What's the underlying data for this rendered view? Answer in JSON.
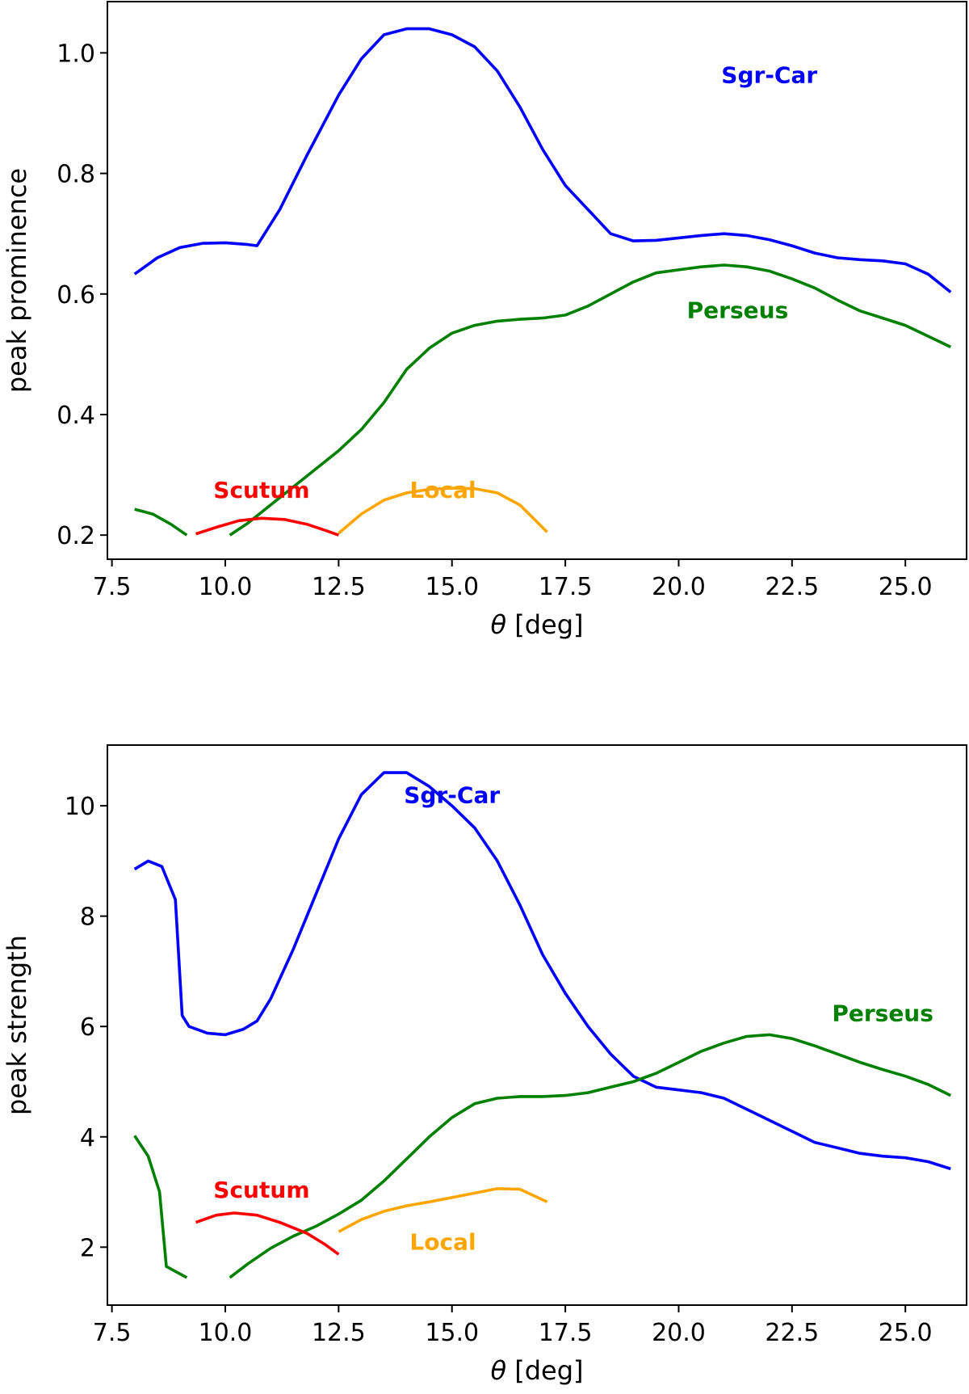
{
  "chart_data": [
    {
      "type": "line",
      "id": "top",
      "xlabel_symbol": "θ",
      "xlabel_unit": " [deg]",
      "ylabel": "peak prominence",
      "xlim": [
        7.4,
        26.35
      ],
      "ylim": [
        0.16,
        1.085
      ],
      "xticks": [
        7.5,
        10.0,
        12.5,
        15.0,
        17.5,
        20.0,
        22.5,
        25.0
      ],
      "xtick_labels": [
        "7.5",
        "10.0",
        "12.5",
        "15.0",
        "17.5",
        "20.0",
        "22.5",
        "25.0"
      ],
      "yticks": [
        0.2,
        0.4,
        0.6,
        0.8,
        1.0
      ],
      "ytick_labels": [
        "0.2",
        "0.4",
        "0.6",
        "0.8",
        "1.0"
      ],
      "series": [
        {
          "name": "Sgr-Car",
          "label": "Sgr-Car",
          "color": "#0000ff",
          "label_at": [
            22,
            0.95
          ],
          "points": [
            [
              8.0,
              0.633
            ],
            [
              8.5,
              0.66
            ],
            [
              9.0,
              0.677
            ],
            [
              9.5,
              0.684
            ],
            [
              10.0,
              0.685
            ],
            [
              10.5,
              0.682
            ],
            [
              10.7,
              0.68
            ],
            [
              11.2,
              0.74
            ],
            [
              11.8,
              0.83
            ],
            [
              12.5,
              0.93
            ],
            [
              13.0,
              0.99
            ],
            [
              13.5,
              1.03
            ],
            [
              14.0,
              1.04
            ],
            [
              14.5,
              1.04
            ],
            [
              15.0,
              1.03
            ],
            [
              15.5,
              1.01
            ],
            [
              16.0,
              0.97
            ],
            [
              16.5,
              0.91
            ],
            [
              17.0,
              0.84
            ],
            [
              17.5,
              0.78
            ],
            [
              18.0,
              0.74
            ],
            [
              18.5,
              0.7
            ],
            [
              19.0,
              0.688
            ],
            [
              19.5,
              0.689
            ],
            [
              20.0,
              0.693
            ],
            [
              20.5,
              0.697
            ],
            [
              21.0,
              0.7
            ],
            [
              21.5,
              0.697
            ],
            [
              22.0,
              0.69
            ],
            [
              22.5,
              0.68
            ],
            [
              23.0,
              0.668
            ],
            [
              23.5,
              0.66
            ],
            [
              24.0,
              0.657
            ],
            [
              24.5,
              0.655
            ],
            [
              25.0,
              0.65
            ],
            [
              25.5,
              0.633
            ],
            [
              26.0,
              0.603
            ]
          ]
        },
        {
          "name": "Perseus",
          "label": "Perseus",
          "color": "#008000",
          "label_at": [
            21.3,
            0.56
          ],
          "points": [
            [
              10.1,
              0.2
            ],
            [
              10.5,
              0.22
            ],
            [
              11.0,
              0.25
            ],
            [
              11.5,
              0.28
            ],
            [
              12.0,
              0.31
            ],
            [
              12.5,
              0.34
            ],
            [
              13.0,
              0.375
            ],
            [
              13.5,
              0.42
            ],
            [
              14.0,
              0.475
            ],
            [
              14.5,
              0.51
            ],
            [
              15.0,
              0.535
            ],
            [
              15.5,
              0.548
            ],
            [
              16.0,
              0.555
            ],
            [
              16.5,
              0.558
            ],
            [
              17.0,
              0.56
            ],
            [
              17.5,
              0.565
            ],
            [
              18.0,
              0.58
            ],
            [
              18.5,
              0.6
            ],
            [
              19.0,
              0.62
            ],
            [
              19.5,
              0.635
            ],
            [
              20.0,
              0.64
            ],
            [
              20.5,
              0.645
            ],
            [
              21.0,
              0.648
            ],
            [
              21.5,
              0.645
            ],
            [
              22.0,
              0.638
            ],
            [
              22.5,
              0.625
            ],
            [
              23.0,
              0.61
            ],
            [
              23.5,
              0.59
            ],
            [
              24.0,
              0.572
            ],
            [
              24.5,
              0.56
            ],
            [
              25.0,
              0.548
            ],
            [
              25.5,
              0.53
            ],
            [
              26.0,
              0.512
            ]
          ]
        },
        {
          "name": "Perseus-early",
          "label": "",
          "color": "#008000",
          "points": [
            [
              8.0,
              0.243
            ],
            [
              8.4,
              0.235
            ],
            [
              8.8,
              0.218
            ],
            [
              9.15,
              0.2
            ]
          ]
        },
        {
          "name": "Scutum",
          "label": "Scutum",
          "color": "#ff0000",
          "label_at": [
            10.8,
            0.262
          ],
          "points": [
            [
              9.35,
              0.202
            ],
            [
              9.8,
              0.213
            ],
            [
              10.3,
              0.224
            ],
            [
              10.8,
              0.228
            ],
            [
              11.3,
              0.226
            ],
            [
              11.8,
              0.218
            ],
            [
              12.2,
              0.208
            ],
            [
              12.5,
              0.2
            ]
          ]
        },
        {
          "name": "Local",
          "label": "Local",
          "color": "#ffa500",
          "label_at": [
            14.8,
            0.262
          ],
          "points": [
            [
              12.5,
              0.203
            ],
            [
              13.0,
              0.235
            ],
            [
              13.5,
              0.258
            ],
            [
              14.0,
              0.27
            ],
            [
              14.5,
              0.276
            ],
            [
              15.0,
              0.278
            ],
            [
              15.5,
              0.277
            ],
            [
              16.0,
              0.27
            ],
            [
              16.5,
              0.25
            ],
            [
              17.1,
              0.205
            ]
          ]
        }
      ]
    },
    {
      "type": "line",
      "id": "bottom",
      "xlabel_symbol": "θ",
      "xlabel_unit": " [deg]",
      "ylabel": "peak strength",
      "xlim": [
        7.4,
        26.35
      ],
      "ylim": [
        0.95,
        11.1
      ],
      "xticks": [
        7.5,
        10.0,
        12.5,
        15.0,
        17.5,
        20.0,
        22.5,
        25.0
      ],
      "xtick_labels": [
        "7.5",
        "10.0",
        "12.5",
        "15.0",
        "17.5",
        "20.0",
        "22.5",
        "25.0"
      ],
      "yticks": [
        2,
        4,
        6,
        8,
        10
      ],
      "ytick_labels": [
        "2",
        "4",
        "6",
        "8",
        "10"
      ],
      "series": [
        {
          "name": "Sgr-Car",
          "label": "Sgr-Car",
          "color": "#0000ff",
          "label_at": [
            15.0,
            10.05
          ],
          "points": [
            [
              8.0,
              8.85
            ],
            [
              8.3,
              9.0
            ],
            [
              8.6,
              8.9
            ],
            [
              8.9,
              8.3
            ],
            [
              9.05,
              6.2
            ],
            [
              9.2,
              6.0
            ],
            [
              9.6,
              5.88
            ],
            [
              10.0,
              5.85
            ],
            [
              10.4,
              5.95
            ],
            [
              10.7,
              6.1
            ],
            [
              11.0,
              6.5
            ],
            [
              11.5,
              7.4
            ],
            [
              12.0,
              8.4
            ],
            [
              12.5,
              9.4
            ],
            [
              13.0,
              10.2
            ],
            [
              13.5,
              10.6
            ],
            [
              14.0,
              10.6
            ],
            [
              14.5,
              10.35
            ],
            [
              15.0,
              10.0
            ],
            [
              15.5,
              9.6
            ],
            [
              16.0,
              9.0
            ],
            [
              16.5,
              8.2
            ],
            [
              17.0,
              7.3
            ],
            [
              17.5,
              6.6
            ],
            [
              18.0,
              6.0
            ],
            [
              18.5,
              5.5
            ],
            [
              19.0,
              5.1
            ],
            [
              19.5,
              4.9
            ],
            [
              20.0,
              4.85
            ],
            [
              20.5,
              4.8
            ],
            [
              21.0,
              4.7
            ],
            [
              21.5,
              4.5
            ],
            [
              22.0,
              4.3
            ],
            [
              22.5,
              4.1
            ],
            [
              23.0,
              3.9
            ],
            [
              23.5,
              3.8
            ],
            [
              24.0,
              3.7
            ],
            [
              24.5,
              3.65
            ],
            [
              25.0,
              3.62
            ],
            [
              25.5,
              3.55
            ],
            [
              26.0,
              3.42
            ]
          ]
        },
        {
          "name": "Perseus",
          "label": "Perseus",
          "color": "#008000",
          "label_at": [
            24.5,
            6.1
          ],
          "points": [
            [
              10.1,
              1.45
            ],
            [
              10.5,
              1.7
            ],
            [
              11.0,
              1.98
            ],
            [
              11.5,
              2.2
            ],
            [
              12.0,
              2.38
            ],
            [
              12.5,
              2.6
            ],
            [
              13.0,
              2.85
            ],
            [
              13.5,
              3.2
            ],
            [
              14.0,
              3.6
            ],
            [
              14.5,
              4.0
            ],
            [
              15.0,
              4.35
            ],
            [
              15.5,
              4.6
            ],
            [
              16.0,
              4.7
            ],
            [
              16.5,
              4.73
            ],
            [
              17.0,
              4.73
            ],
            [
              17.5,
              4.75
            ],
            [
              18.0,
              4.8
            ],
            [
              18.5,
              4.9
            ],
            [
              19.0,
              5.0
            ],
            [
              19.5,
              5.15
            ],
            [
              20.0,
              5.35
            ],
            [
              20.5,
              5.55
            ],
            [
              21.0,
              5.7
            ],
            [
              21.5,
              5.82
            ],
            [
              22.0,
              5.85
            ],
            [
              22.5,
              5.78
            ],
            [
              23.0,
              5.65
            ],
            [
              23.5,
              5.5
            ],
            [
              24.0,
              5.35
            ],
            [
              24.5,
              5.22
            ],
            [
              25.0,
              5.1
            ],
            [
              25.5,
              4.95
            ],
            [
              26.0,
              4.75
            ]
          ]
        },
        {
          "name": "Perseus-early",
          "label": "",
          "color": "#008000",
          "points": [
            [
              8.0,
              4.02
            ],
            [
              8.3,
              3.65
            ],
            [
              8.55,
              3.0
            ],
            [
              8.7,
              1.65
            ],
            [
              9.15,
              1.45
            ]
          ]
        },
        {
          "name": "Scutum",
          "label": "Scutum",
          "color": "#ff0000",
          "label_at": [
            10.8,
            2.9
          ],
          "points": [
            [
              9.35,
              2.45
            ],
            [
              9.8,
              2.58
            ],
            [
              10.2,
              2.62
            ],
            [
              10.7,
              2.58
            ],
            [
              11.2,
              2.45
            ],
            [
              11.8,
              2.25
            ],
            [
              12.2,
              2.05
            ],
            [
              12.5,
              1.87
            ]
          ]
        },
        {
          "name": "Local",
          "label": "Local",
          "color": "#ffa500",
          "label_at": [
            14.8,
            1.95
          ],
          "points": [
            [
              12.5,
              2.28
            ],
            [
              13.0,
              2.5
            ],
            [
              13.5,
              2.65
            ],
            [
              14.0,
              2.75
            ],
            [
              14.5,
              2.82
            ],
            [
              15.0,
              2.9
            ],
            [
              15.5,
              2.98
            ],
            [
              16.0,
              3.06
            ],
            [
              16.5,
              3.05
            ],
            [
              17.1,
              2.82
            ]
          ]
        }
      ]
    }
  ]
}
